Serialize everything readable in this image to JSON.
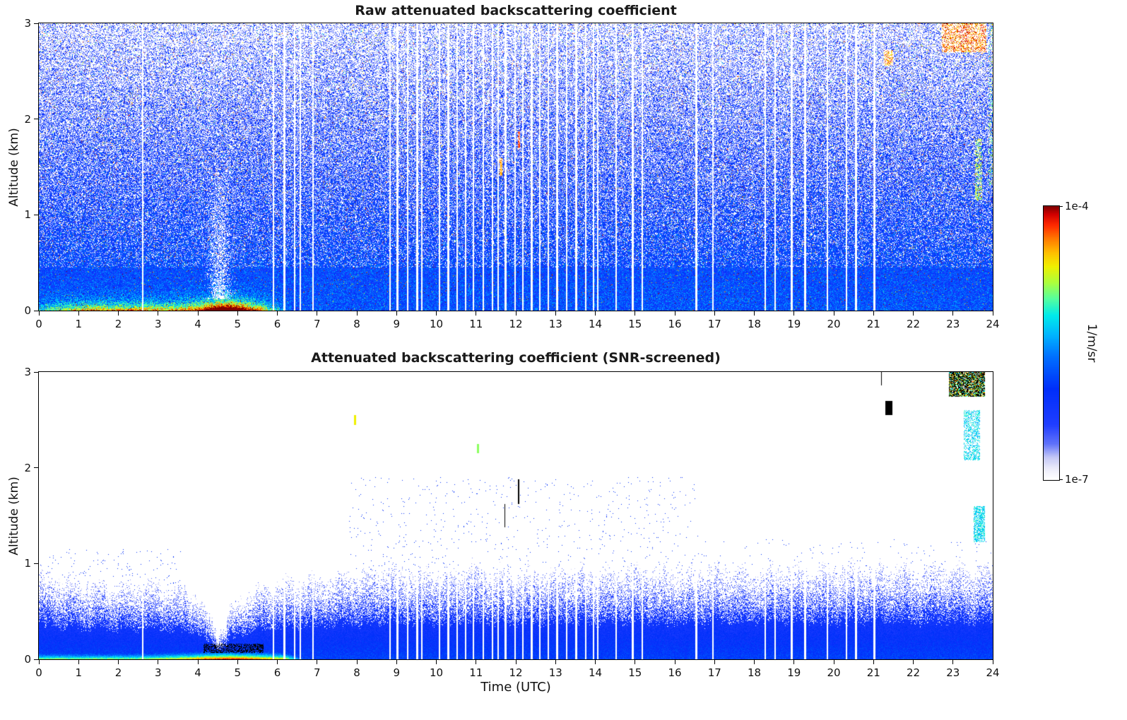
{
  "figure": {
    "background": "#ffffff",
    "xlabel": "Time (UTC)",
    "colorbar": {
      "max_label": "1e-4",
      "min_label": "1e-7",
      "unit": "1/m/sr",
      "scale": "log"
    }
  },
  "colormap": {
    "stops": [
      [
        0.0,
        255,
        255,
        255
      ],
      [
        0.04,
        236,
        236,
        250
      ],
      [
        0.08,
        196,
        200,
        246
      ],
      [
        0.13,
        96,
        114,
        250
      ],
      [
        0.2,
        32,
        62,
        255
      ],
      [
        0.33,
        0,
        46,
        250
      ],
      [
        0.45,
        0,
        112,
        255
      ],
      [
        0.53,
        0,
        182,
        255
      ],
      [
        0.6,
        0,
        235,
        235
      ],
      [
        0.66,
        84,
        255,
        160
      ],
      [
        0.72,
        172,
        255,
        60
      ],
      [
        0.78,
        240,
        240,
        0
      ],
      [
        0.83,
        255,
        190,
        0
      ],
      [
        0.88,
        255,
        122,
        0
      ],
      [
        0.93,
        255,
        42,
        0
      ],
      [
        0.97,
        208,
        0,
        0
      ],
      [
        1.0,
        126,
        0,
        0
      ]
    ],
    "saturated_color": "#000000"
  },
  "chart_data": [
    {
      "type": "heatmap",
      "title": "Raw attenuated backscattering coefficient",
      "xlabel": "",
      "ylabel": "Altitude (km)",
      "xlim": [
        0,
        24
      ],
      "ylim": [
        0,
        3
      ],
      "xticks": [
        0,
        1,
        2,
        3,
        4,
        5,
        6,
        7,
        8,
        9,
        10,
        11,
        12,
        13,
        14,
        15,
        16,
        17,
        18,
        19,
        20,
        21,
        22,
        23,
        24
      ],
      "yticks": [
        0,
        1,
        2,
        3
      ],
      "colorbar": {
        "min": "1e-7",
        "max": "1e-4",
        "unit": "1/m/sr"
      },
      "features": {
        "noise": {
          "signal_prob_top": 0.38,
          "signal_prob_bottom": 1.0,
          "base_value": 0.37,
          "alt_fade": 0.22,
          "jitter": 0.33,
          "speck_prob_base": 0.012,
          "speck_prob_alt": 0.055
        },
        "ground_layer": {
          "end_time": 6.3,
          "peak_time": 4.7,
          "peak_sigma": 0.6,
          "base_amp": 0.5,
          "peak_amp": 0.6,
          "depth_km": 0.075
        },
        "plume": {
          "time": 4.55,
          "sigma": 0.22,
          "top_km": 1.7,
          "strength": 0.85
        },
        "gap_halfwidth": 0.02,
        "gaps": [
          2.62,
          5.9,
          6.18,
          6.44,
          6.58,
          6.9,
          8.84,
          9.02,
          9.28,
          9.52,
          9.64,
          10.08,
          10.3,
          10.52,
          10.74,
          10.94,
          11.18,
          11.42,
          11.56,
          11.74,
          11.98,
          12.18,
          12.4,
          12.6,
          12.82,
          13.04,
          13.28,
          13.52,
          13.76,
          13.96,
          14.06,
          14.52,
          14.94,
          15.18,
          16.54,
          16.96,
          18.28,
          18.52,
          18.94,
          19.28,
          19.84,
          20.32,
          20.56,
          21.02
        ],
        "clouds": [
          {
            "t0": 22.72,
            "t1": 23.84,
            "a0": 2.7,
            "a1": 3.02,
            "value": 1.0
          },
          {
            "t0": 21.27,
            "t1": 21.5,
            "a0": 2.56,
            "a1": 2.72,
            "value": 0.97
          },
          {
            "t0": 23.56,
            "t1": 23.74,
            "a0": 1.15,
            "a1": 1.8,
            "value": 0.85,
            "sparse": 0.55
          },
          {
            "t0": 23.9,
            "t1": 24.0,
            "a0": 1.3,
            "a1": 3.0,
            "value": 0.8,
            "sparse": 0.3
          }
        ],
        "dots": [
          {
            "t": 12.08,
            "a": 1.78,
            "value": 0.92
          },
          {
            "t": 11.62,
            "a": 1.5,
            "value": 0.85
          }
        ]
      }
    },
    {
      "type": "heatmap",
      "title": "Attenuated backscattering coefficient (SNR-screened)",
      "xlabel": "Time (UTC)",
      "ylabel": "Altitude (km)",
      "xlim": [
        0,
        24
      ],
      "ylim": [
        0,
        3
      ],
      "xticks": [
        0,
        1,
        2,
        3,
        4,
        5,
        6,
        7,
        8,
        9,
        10,
        11,
        12,
        13,
        14,
        15,
        16,
        17,
        18,
        19,
        20,
        21,
        22,
        23,
        24
      ],
      "yticks": [
        0,
        1,
        2,
        3
      ],
      "colorbar": {
        "min": "1e-7",
        "max": "1e-4",
        "unit": "1/m/sr"
      },
      "features": {
        "bl_keypoints": [
          [
            0,
            0.88
          ],
          [
            1,
            0.8
          ],
          [
            2,
            0.77
          ],
          [
            3,
            0.8
          ],
          [
            4,
            0.66
          ],
          [
            4.3,
            0.42
          ],
          [
            4.55,
            0.28
          ],
          [
            4.85,
            0.52
          ],
          [
            5.2,
            0.68
          ],
          [
            6,
            0.8
          ],
          [
            7,
            0.86
          ],
          [
            8,
            0.9
          ],
          [
            9,
            0.96
          ],
          [
            10,
            0.91
          ],
          [
            11,
            0.96
          ],
          [
            12,
            0.9
          ],
          [
            13,
            0.95
          ],
          [
            14,
            0.9
          ],
          [
            15,
            0.95
          ],
          [
            16,
            0.9
          ],
          [
            17,
            0.94
          ],
          [
            18,
            0.92
          ],
          [
            19,
            0.96
          ],
          [
            20,
            0.94
          ],
          [
            21,
            0.97
          ],
          [
            22,
            0.94
          ],
          [
            23,
            0.97
          ],
          [
            24,
            0.95
          ]
        ],
        "jitter": 0.12,
        "ground_layer": {
          "end_time": 7.2,
          "amp": 0.72,
          "peak_time": 4.8,
          "peak_amp": 0.25,
          "peak_sigma": 1.3,
          "depth_km": 0.085
        },
        "black_dashes": {
          "t0": 4.15,
          "t1": 5.65,
          "a0": 0.07,
          "a1": 0.16,
          "prob": 0.5
        },
        "gap_halfwidth": 0.02,
        "gaps": [
          2.62,
          5.9,
          6.18,
          6.44,
          6.58,
          6.9,
          8.84,
          9.02,
          9.28,
          9.52,
          9.64,
          10.08,
          10.3,
          10.52,
          10.74,
          10.94,
          11.18,
          11.42,
          11.56,
          11.74,
          11.98,
          12.18,
          12.4,
          12.6,
          12.82,
          13.04,
          13.28,
          13.52,
          13.76,
          13.96,
          14.06,
          14.52,
          14.94,
          15.18,
          16.54,
          16.96,
          18.28,
          18.52,
          18.94,
          19.28,
          19.84,
          20.32,
          20.56,
          21.02
        ],
        "speckle_above": [
          {
            "t0": 0,
            "t1": 3.6,
            "max_alt": 1.15,
            "prob": 0.012,
            "value": 0.3
          },
          {
            "t0": 7.8,
            "t1": 16.6,
            "max_alt": 1.9,
            "prob": 0.01,
            "value": 0.3
          },
          {
            "t0": 16.6,
            "t1": 24,
            "max_alt": 1.25,
            "prob": 0.006,
            "value": 0.3
          }
        ],
        "clouds": [
          {
            "type": "mixed",
            "t0": 22.9,
            "t1": 23.8,
            "a0": 2.74,
            "a1": 3.02
          },
          {
            "type": "black",
            "t0": 21.3,
            "t1": 21.47,
            "a0": 2.55,
            "a1": 2.7
          },
          {
            "type": "cyan",
            "t0": 23.28,
            "t1": 23.68,
            "a0": 2.08,
            "a1": 2.6,
            "prob": 0.45
          },
          {
            "type": "cyan",
            "t0": 23.52,
            "t1": 23.8,
            "a0": 1.22,
            "a1": 1.6,
            "prob": 0.6
          }
        ],
        "black_ticks": [
          {
            "t": 11.72,
            "a0": 1.38,
            "a1": 1.62
          },
          {
            "t": 12.07,
            "a0": 1.62,
            "a1": 1.88
          },
          {
            "t": 21.2,
            "a0": 2.86,
            "a1": 3.0
          }
        ],
        "dots": [
          {
            "t": 7.95,
            "a": 2.5,
            "value": 0.78
          },
          {
            "t": 11.05,
            "a": 2.2,
            "value": 0.7
          }
        ]
      }
    }
  ]
}
